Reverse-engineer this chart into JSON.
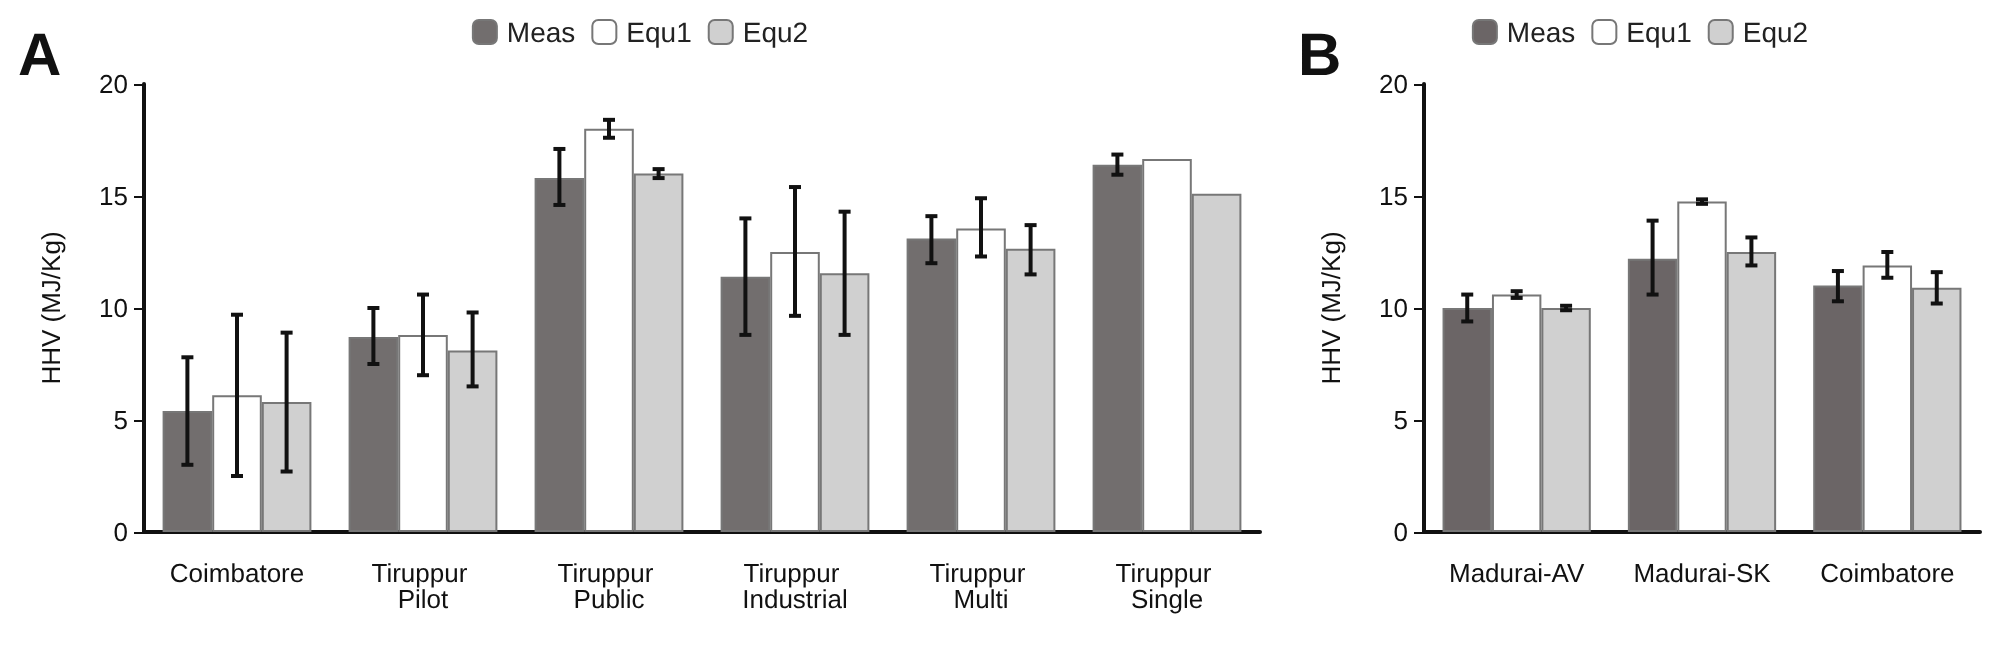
{
  "chart_data": [
    {
      "type": "bar",
      "title": "A",
      "ylabel": "HHV (MJ/Kg)",
      "categories": [
        "Coimbatore",
        "Tiruppur Pilot",
        "Tiruppur Public",
        "Tiruppur Industrial",
        "Tiruppur Multi",
        "Tiruppur Single"
      ],
      "series": [
        {
          "name": "Meas",
          "color": "#726e6e",
          "values": [
            5.4,
            8.7,
            15.8,
            11.4,
            13.1,
            16.4
          ],
          "errors": [
            [
              3.0,
              7.8
            ],
            [
              7.5,
              10.0
            ],
            [
              14.6,
              17.1
            ],
            [
              8.8,
              14.0
            ],
            [
              12.0,
              14.1
            ],
            [
              15.95,
              16.85
            ]
          ]
        },
        {
          "name": "Equ1",
          "color": "#ffffff",
          "values": [
            6.1,
            8.8,
            18.0,
            12.5,
            13.55,
            16.65
          ],
          "errors": [
            [
              2.5,
              9.7
            ],
            [
              7.0,
              10.6
            ],
            [
              17.6,
              18.4
            ],
            [
              9.65,
              15.4
            ],
            [
              12.3,
              14.9
            ],
            null
          ]
        },
        {
          "name": "Equ2",
          "color": "#d0d0d0",
          "values": [
            5.8,
            8.1,
            16.0,
            11.55,
            12.65,
            15.1
          ],
          "errors": [
            [
              2.7,
              8.9
            ],
            [
              6.5,
              9.8
            ],
            [
              15.8,
              16.2
            ],
            [
              8.8,
              14.3
            ],
            [
              11.5,
              13.7
            ],
            null
          ]
        }
      ],
      "ylim": [
        0,
        20
      ],
      "yticks": [
        0,
        5,
        10,
        15,
        20
      ],
      "grid": false,
      "legend": "top"
    },
    {
      "type": "bar",
      "title": "B",
      "ylabel": "HHV (MJ/Kg)",
      "categories": [
        "Madurai-AV",
        "Madurai-SK",
        "Coimbatore"
      ],
      "series": [
        {
          "name": "Meas",
          "color": "#6b6566",
          "values": [
            10.0,
            12.2,
            11.0
          ],
          "errors": [
            [
              9.4,
              10.6
            ],
            [
              10.6,
              13.9
            ],
            [
              10.3,
              11.65
            ]
          ]
        },
        {
          "name": "Equ1",
          "color": "#ffffff",
          "values": [
            10.6,
            14.75,
            11.9
          ],
          "errors": [
            [
              10.45,
              10.75
            ],
            [
              14.65,
              14.85
            ],
            [
              11.35,
              12.5
            ]
          ]
        },
        {
          "name": "Equ2",
          "color": "#d0d0d0",
          "values": [
            10.0,
            12.5,
            10.9
          ],
          "errors": [
            [
              9.9,
              10.1
            ],
            [
              11.9,
              13.15
            ],
            [
              10.2,
              11.6
            ]
          ]
        }
      ],
      "ylim": [
        0,
        20
      ],
      "yticks": [
        0,
        5,
        10,
        15,
        20
      ],
      "grid": false,
      "legend": "top"
    }
  ]
}
